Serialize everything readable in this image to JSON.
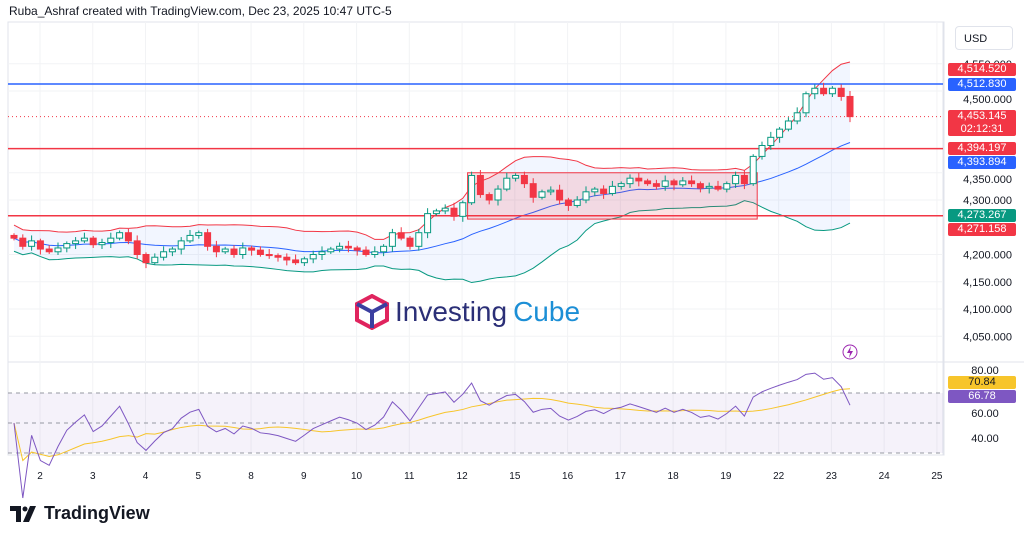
{
  "header": {
    "title": "Ruba_Ashraf created with TradingView.com, Dec 23, 2025 10:47 UTC-5",
    "currency": "USD"
  },
  "watermark": {
    "part1": "Investing",
    "part2": "Cube"
  },
  "footer": {
    "logo_text": "TradingView"
  },
  "colors": {
    "up": "#089981",
    "down": "#f23645",
    "blue": "#2962ff",
    "rsi": "#7e57c2",
    "rsi_ma": "#f7c52b"
  },
  "tags": {
    "high_line": "4,514.520",
    "blue_top": "4,512.830",
    "last": "4,453.145",
    "countdown": "02:12:31",
    "red_mid": "4,394.197",
    "bb_mid": "4,393.894",
    "bb_low": "4,273.267",
    "red_low": "4,271.158",
    "rsi_ma": "70.84",
    "rsi": "66.78"
  },
  "chart_data": {
    "type": "candlestick",
    "price_ticks": [
      "4,550.000",
      "4,500.000",
      "4,350.000",
      "4,300.000",
      "4,200.000",
      "4,150.000",
      "4,100.000",
      "4,050.000"
    ],
    "price_tick_values": [
      4550,
      4500,
      4350,
      4300,
      4200,
      4150,
      4100,
      4050
    ],
    "x_labels": [
      "2",
      "3",
      "4",
      "5",
      "8",
      "9",
      "10",
      "11",
      "12",
      "15",
      "16",
      "17",
      "18",
      "19",
      "22",
      "23",
      "24",
      "25"
    ],
    "rsi_ticks": [
      "80.00",
      "60.00",
      "40.00"
    ],
    "rsi_tick_values": [
      80,
      60,
      40
    ],
    "hlines": [
      {
        "price": 4512.83,
        "color": "#2962ff"
      },
      {
        "price": 4394.197,
        "color": "#f23645"
      },
      {
        "price": 4271.158,
        "color": "#f23645"
      }
    ],
    "range_box": {
      "top": 4350,
      "bottom": 4265,
      "start_index": 52,
      "end_index": 84
    },
    "closes": [
      4230,
      4215,
      4225,
      4210,
      4205,
      4212,
      4220,
      4225,
      4230,
      4218,
      4222,
      4230,
      4240,
      4225,
      4200,
      4185,
      4195,
      4205,
      4210,
      4225,
      4235,
      4240,
      4215,
      4205,
      4210,
      4200,
      4212,
      4208,
      4200,
      4198,
      4195,
      4190,
      4185,
      4192,
      4200,
      4205,
      4210,
      4215,
      4212,
      4208,
      4200,
      4205,
      4215,
      4240,
      4230,
      4215,
      4240,
      4275,
      4280,
      4285,
      4270,
      4295,
      4345,
      4310,
      4300,
      4320,
      4340,
      4345,
      4330,
      4305,
      4315,
      4318,
      4300,
      4290,
      4300,
      4315,
      4320,
      4312,
      4325,
      4330,
      4340,
      4335,
      4330,
      4325,
      4335,
      4328,
      4335,
      4330,
      4322,
      4325,
      4320,
      4330,
      4345,
      4330,
      4380,
      4400,
      4415,
      4430,
      4445,
      4460,
      4495,
      4505,
      4495,
      4505,
      4490,
      4453
    ]
  }
}
